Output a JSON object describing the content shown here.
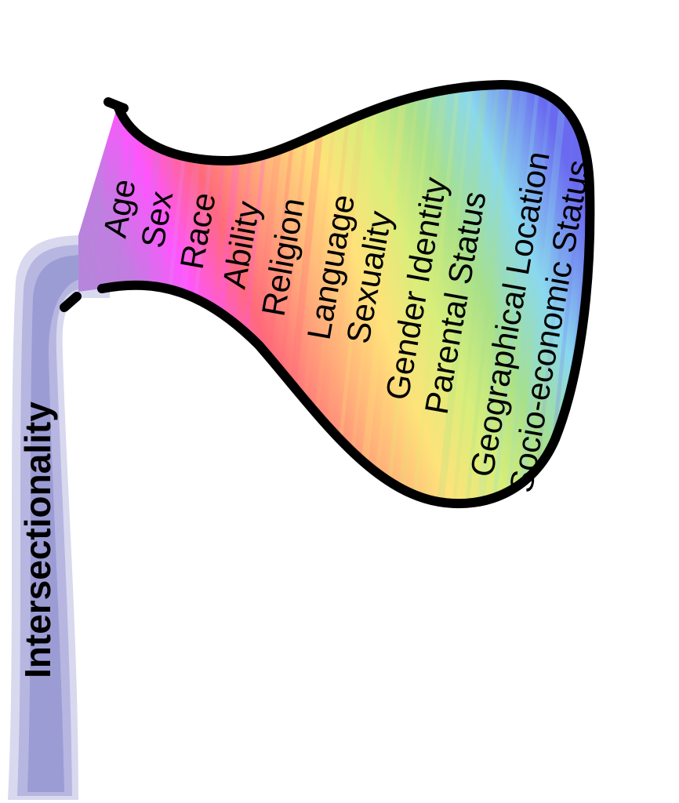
{
  "title": "Intersectionality",
  "factors": [
    "Age",
    "Sex",
    "Race",
    "Ability",
    "Religion",
    "Language",
    "Sexuality",
    "Gender Identity",
    "Parental Status",
    "Geographical Location",
    "Socio-economic Status"
  ],
  "colors": {
    "stream": "#8e8fd0",
    "outline": "#000000",
    "bands": [
      "#b08ad8",
      "#c07ee0",
      "#e08ef0",
      "#ff55ff",
      "#ff6a7a",
      "#ffb27a",
      "#ffe27a",
      "#d8ee7a",
      "#a8e08a",
      "#8ad8ee",
      "#7a7af0"
    ]
  }
}
